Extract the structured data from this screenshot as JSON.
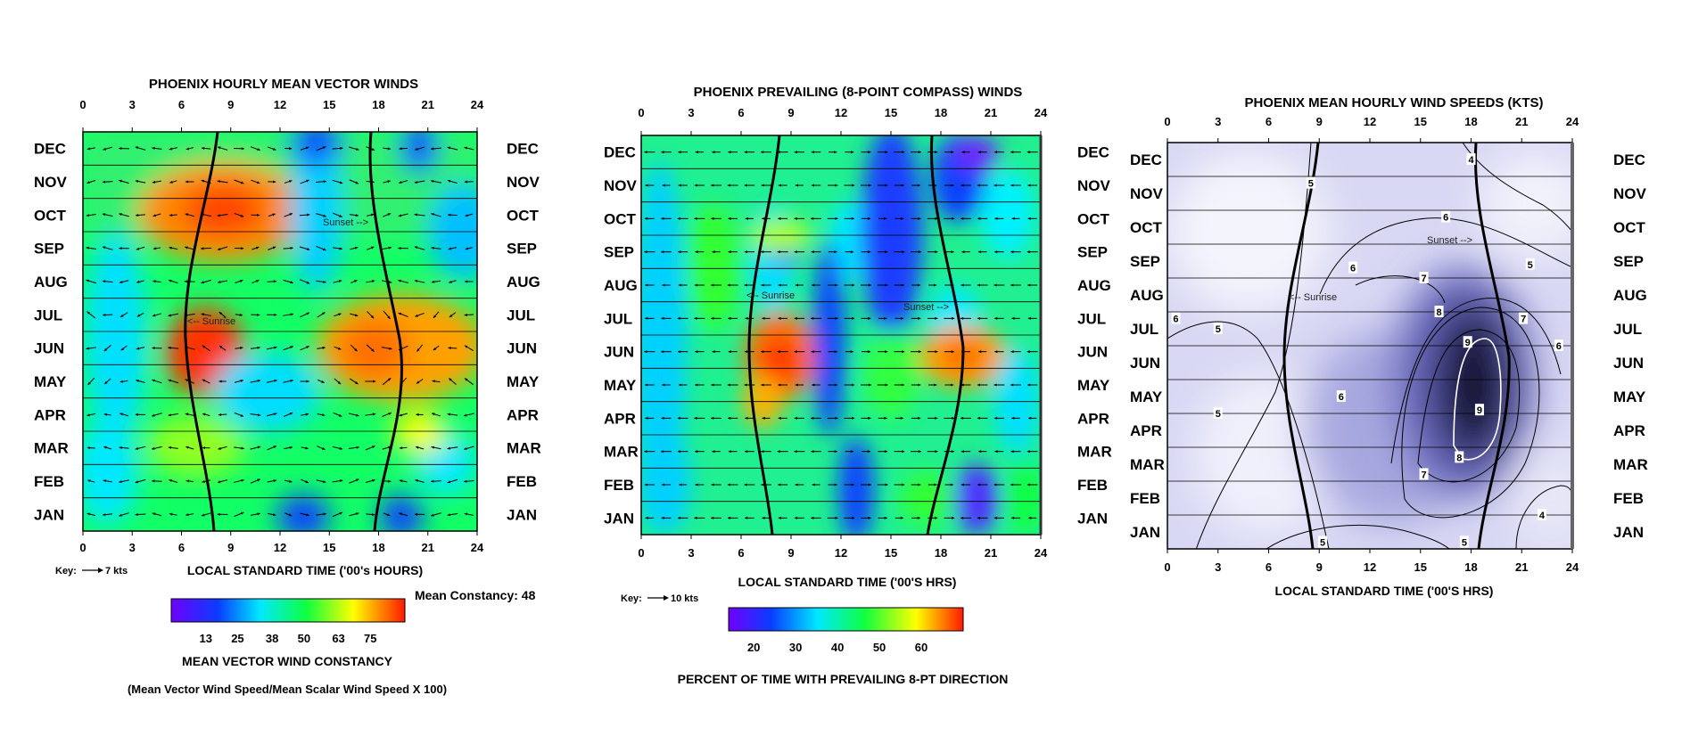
{
  "chart_data": [
    {
      "type": "heatmap",
      "title": "PHOENIX HOURLY MEAN VECTOR WINDS",
      "xlabel": "LOCAL STANDARD TIME ('00's HOURS)",
      "x_ticks": [
        0,
        3,
        6,
        9,
        12,
        15,
        18,
        21,
        24
      ],
      "months": [
        "DEC",
        "NOV",
        "OCT",
        "SEP",
        "AUG",
        "JUL",
        "JUN",
        "MAY",
        "APR",
        "MAR",
        "FEB",
        "JAN"
      ],
      "xlim": [
        0,
        24
      ],
      "key_label": "Key:",
      "key_value": "7 kts",
      "annotation": "Mean Constancy: 48",
      "sunrise_label": "<-- Sunrise",
      "sunset_label": "Sunset -->",
      "colorbar": {
        "ticks": [
          13,
          25,
          38,
          50,
          63,
          75
        ],
        "range": [
          0,
          88
        ],
        "label": "MEAN VECTOR WIND CONSTANCY",
        "sublabel": "(Mean Vector Wind Speed/Mean Scalar Wind Speed X 100)"
      }
    },
    {
      "type": "heatmap",
      "title": "PHOENIX PREVAILING (8-POINT COMPASS) WINDS",
      "xlabel": "LOCAL STANDARD TIME ('00'S HRS)",
      "x_ticks": [
        0,
        3,
        6,
        9,
        12,
        15,
        18,
        21,
        24
      ],
      "months": [
        "DEC",
        "NOV",
        "OCT",
        "SEP",
        "AUG",
        "JUL",
        "JUN",
        "MAY",
        "APR",
        "MAR",
        "FEB",
        "JAN"
      ],
      "xlim": [
        0,
        24
      ],
      "key_label": "Key:",
      "key_value": "10 kts",
      "sunrise_label": "<-- Sunrise",
      "sunset_label": "Sunset -->",
      "colorbar": {
        "ticks": [
          20,
          30,
          40,
          50,
          60
        ],
        "range": [
          14,
          70
        ],
        "label": "PERCENT OF TIME WITH PREVAILING 8-PT DIRECTION"
      }
    },
    {
      "type": "heatmap",
      "title": "PHOENIX MEAN HOURLY WIND SPEEDS (KTS)",
      "xlabel": "LOCAL STANDARD TIME ('00'S HRS)",
      "x_ticks": [
        0,
        3,
        6,
        9,
        12,
        15,
        18,
        21,
        24
      ],
      "months": [
        "DEC",
        "NOV",
        "OCT",
        "SEP",
        "AUG",
        "JUL",
        "JUN",
        "MAY",
        "APR",
        "MAR",
        "FEB",
        "JAN"
      ],
      "xlim": [
        0,
        24
      ],
      "sunrise_label": "<-- Sunrise",
      "sunset_label": "Sunset -->",
      "contour_levels": [
        4,
        5,
        6,
        7,
        8,
        9
      ],
      "contour_labels": [
        {
          "text": "4",
          "hour": 18.0,
          "month_index": 0.0
        },
        {
          "text": "5",
          "hour": 8.5,
          "month_index": 0.7
        },
        {
          "text": "6",
          "hour": 16.5,
          "month_index": 1.7
        },
        {
          "text": "5",
          "hour": 21.5,
          "month_index": 3.1
        },
        {
          "text": "6",
          "hour": 11.0,
          "month_index": 3.2
        },
        {
          "text": "7",
          "hour": 15.2,
          "month_index": 3.5
        },
        {
          "text": "6",
          "hour": 0.5,
          "month_index": 4.7
        },
        {
          "text": "5",
          "hour": 3.0,
          "month_index": 5.0
        },
        {
          "text": "8",
          "hour": 16.1,
          "month_index": 4.5
        },
        {
          "text": "7",
          "hour": 21.1,
          "month_index": 4.7
        },
        {
          "text": "9",
          "hour": 17.8,
          "month_index": 5.4
        },
        {
          "text": "6",
          "hour": 23.2,
          "month_index": 5.5
        },
        {
          "text": "6",
          "hour": 10.3,
          "month_index": 7.0
        },
        {
          "text": "5",
          "hour": 3.0,
          "month_index": 7.5
        },
        {
          "text": "9",
          "hour": 18.5,
          "month_index": 7.4
        },
        {
          "text": "8",
          "hour": 17.3,
          "month_index": 8.8
        },
        {
          "text": "7",
          "hour": 15.2,
          "month_index": 9.3
        },
        {
          "text": "4",
          "hour": 22.2,
          "month_index": 10.5
        },
        {
          "text": "5",
          "hour": 9.2,
          "month_index": 11.3
        },
        {
          "text": "5",
          "hour": 17.6,
          "month_index": 11.3
        }
      ]
    }
  ]
}
